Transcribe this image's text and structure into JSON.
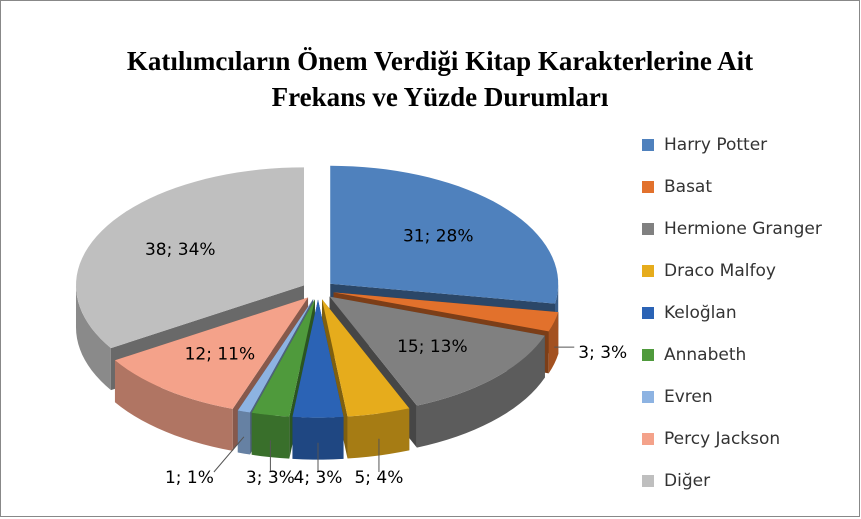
{
  "chart_data": {
    "type": "pie3d",
    "title": [
      "Katılımcıların Önem Verdiği Kitap Karakterlerine Ait",
      "Frekans ve Yüzde Durumları"
    ],
    "categories": [
      "Harry Potter",
      "Basat",
      "Hermione Granger",
      "Draco Malfoy",
      "Keloğlan",
      "Annabeth",
      "Evren",
      "Percy Jackson",
      "Diğer"
    ],
    "values": [
      31,
      3,
      15,
      5,
      4,
      3,
      1,
      12,
      38
    ],
    "value_labels": [
      "31; 28%",
      "3; 3%",
      "15; 13%",
      "5; 4%",
      "4; 3%",
      "3; 3%",
      "1; 1%",
      "12; 11%",
      "38; 34%"
    ],
    "colors": [
      "#4f81bd",
      "#e2712c",
      "#808080",
      "#e6ac1c",
      "#2b63b5",
      "#4f9a3c",
      "#8db3e2",
      "#f4a28a",
      "#bfbfbf"
    ],
    "legend": "right"
  }
}
